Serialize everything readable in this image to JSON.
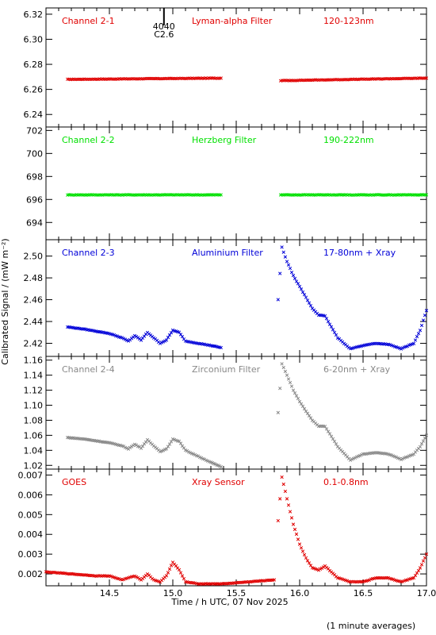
{
  "chart_data": [
    {
      "type": "scatter",
      "panel_labels": [
        "Channel 2-1",
        "Lyman-alpha Filter",
        "120-123nm"
      ],
      "color": "#e00000",
      "ylim": [
        6.23,
        6.325
      ],
      "yticks": [
        6.24,
        6.26,
        6.28,
        6.3,
        6.32
      ],
      "ytick_labels": [
        "6.24",
        "6.26",
        "6.28",
        "6.30",
        "6.32"
      ],
      "flare_marker": {
        "x": 14.93,
        "labels": [
          "4040",
          "C2.6"
        ]
      },
      "series": [
        {
          "x": [
            14.17,
            15.38
          ],
          "y": [
            6.268,
            6.269
          ]
        },
        {
          "x": [
            15.85,
            17.0
          ],
          "y": [
            6.267,
            6.269
          ]
        }
      ]
    },
    {
      "type": "scatter",
      "panel_labels": [
        "Channel 2-2",
        "Herzberg Filter",
        "190-222nm"
      ],
      "color": "#00e000",
      "ylim": [
        692.5,
        702.3
      ],
      "yticks": [
        694,
        696,
        698,
        700,
        702
      ],
      "ytick_labels": [
        "694",
        "696",
        "698",
        "700",
        "702"
      ],
      "series": [
        {
          "x": [
            14.17,
            15.38
          ],
          "y": [
            696.4,
            696.4
          ]
        },
        {
          "x": [
            15.85,
            17.0
          ],
          "y": [
            696.4,
            696.4
          ]
        }
      ]
    },
    {
      "type": "scatter",
      "panel_labels": [
        "Channel 2-3",
        "Aluminium Filter",
        "17-80nm + Xray"
      ],
      "color": "#0000d8",
      "ylim": [
        2.408,
        2.515
      ],
      "yticks": [
        2.42,
        2.44,
        2.46,
        2.48,
        2.5
      ],
      "ytick_labels": [
        "2.42",
        "2.44",
        "2.46",
        "2.48",
        "2.50"
      ],
      "series": [
        {
          "x": [
            14.17,
            14.3,
            14.5,
            14.6,
            14.65,
            14.7,
            14.75,
            14.8,
            14.85,
            14.9,
            14.95,
            15.0,
            15.05,
            15.1,
            15.2,
            15.3,
            15.38
          ],
          "y": [
            2.435,
            2.433,
            2.429,
            2.425,
            2.422,
            2.427,
            2.423,
            2.43,
            2.425,
            2.42,
            2.423,
            2.432,
            2.43,
            2.422,
            2.42,
            2.418,
            2.416
          ]
        },
        {
          "x": [
            15.83,
            15.86,
            15.9,
            15.95,
            16.0,
            16.05,
            16.1,
            16.15,
            16.2,
            16.3,
            16.4,
            16.5,
            16.6,
            16.7,
            16.8,
            16.9,
            16.95,
            17.0
          ],
          "y": [
            2.46,
            2.508,
            2.495,
            2.482,
            2.472,
            2.462,
            2.452,
            2.446,
            2.445,
            2.425,
            2.415,
            2.418,
            2.42,
            2.419,
            2.415,
            2.42,
            2.432,
            2.45
          ]
        }
      ]
    },
    {
      "type": "scatter",
      "panel_labels": [
        "Channel 2-4",
        "Zirconium Filter",
        "6-20nm + Xray"
      ],
      "color": "#888888",
      "ylim": [
        1.015,
        1.165
      ],
      "yticks": [
        1.02,
        1.04,
        1.06,
        1.08,
        1.1,
        1.12,
        1.14,
        1.16
      ],
      "ytick_labels": [
        "1.02",
        "1.04",
        "1.06",
        "1.08",
        "1.10",
        "1.12",
        "1.14",
        "1.16"
      ],
      "series": [
        {
          "x": [
            14.17,
            14.3,
            14.5,
            14.6,
            14.65,
            14.7,
            14.75,
            14.8,
            14.85,
            14.9,
            14.95,
            15.0,
            15.05,
            15.1,
            15.2,
            15.3,
            15.38
          ],
          "y": [
            1.057,
            1.055,
            1.05,
            1.046,
            1.042,
            1.048,
            1.043,
            1.054,
            1.046,
            1.038,
            1.042,
            1.055,
            1.052,
            1.04,
            1.032,
            1.024,
            1.018
          ]
        },
        {
          "x": [
            15.83,
            15.86,
            15.9,
            15.95,
            16.0,
            16.05,
            16.1,
            16.15,
            16.2,
            16.3,
            16.4,
            16.5,
            16.6,
            16.7,
            16.8,
            16.9,
            16.95,
            17.0
          ],
          "y": [
            1.09,
            1.155,
            1.14,
            1.12,
            1.105,
            1.092,
            1.08,
            1.072,
            1.072,
            1.045,
            1.027,
            1.035,
            1.037,
            1.035,
            1.028,
            1.035,
            1.045,
            1.06
          ]
        }
      ]
    },
    {
      "type": "scatter",
      "panel_labels": [
        "GOES",
        "Xray Sensor",
        "0.1-0.8nm"
      ],
      "color": "#e00000",
      "ylim": [
        0.0014,
        0.0073
      ],
      "yticks": [
        0.002,
        0.003,
        0.004,
        0.005,
        0.006,
        0.007
      ],
      "ytick_labels": [
        "0.002",
        "0.003",
        "0.004",
        "0.005",
        "0.006",
        "0.007"
      ],
      "series": [
        {
          "x": [
            14.0,
            14.2,
            14.4,
            14.5,
            14.6,
            14.7,
            14.75,
            14.8,
            14.85,
            14.9,
            14.95,
            15.0,
            15.05,
            15.1,
            15.2,
            15.4,
            15.6,
            15.8
          ],
          "y": [
            0.0021,
            0.002,
            0.0019,
            0.0019,
            0.0017,
            0.0019,
            0.0017,
            0.002,
            0.0017,
            0.0016,
            0.0019,
            0.0026,
            0.0022,
            0.0016,
            0.0015,
            0.0015,
            0.0016,
            0.0017
          ]
        },
        {
          "x": [
            15.83,
            15.86,
            15.9,
            15.95,
            16.0,
            16.05,
            16.1,
            16.15,
            16.2,
            16.3,
            16.4,
            16.5,
            16.6,
            16.7,
            16.8,
            16.9,
            16.95,
            17.0
          ],
          "y": [
            0.0047,
            0.0069,
            0.0058,
            0.0045,
            0.0035,
            0.0028,
            0.0023,
            0.0022,
            0.0024,
            0.0018,
            0.0016,
            0.0016,
            0.0018,
            0.0018,
            0.0016,
            0.0018,
            0.0023,
            0.003
          ]
        }
      ]
    }
  ],
  "x_axis": {
    "xlim": [
      14.0,
      17.0
    ],
    "xticks": [
      14.5,
      15.0,
      15.5,
      16.0,
      16.5,
      17.0
    ],
    "xtick_labels": [
      "14.5",
      "15.0",
      "15.5",
      "16.0",
      "16.5",
      "17.0"
    ],
    "xlabel": "Time / h UTC, 07 Nov 2025"
  },
  "ylabel": "Calibrated Signal / (mW m⁻²)",
  "footnote": "(1 minute averages)"
}
